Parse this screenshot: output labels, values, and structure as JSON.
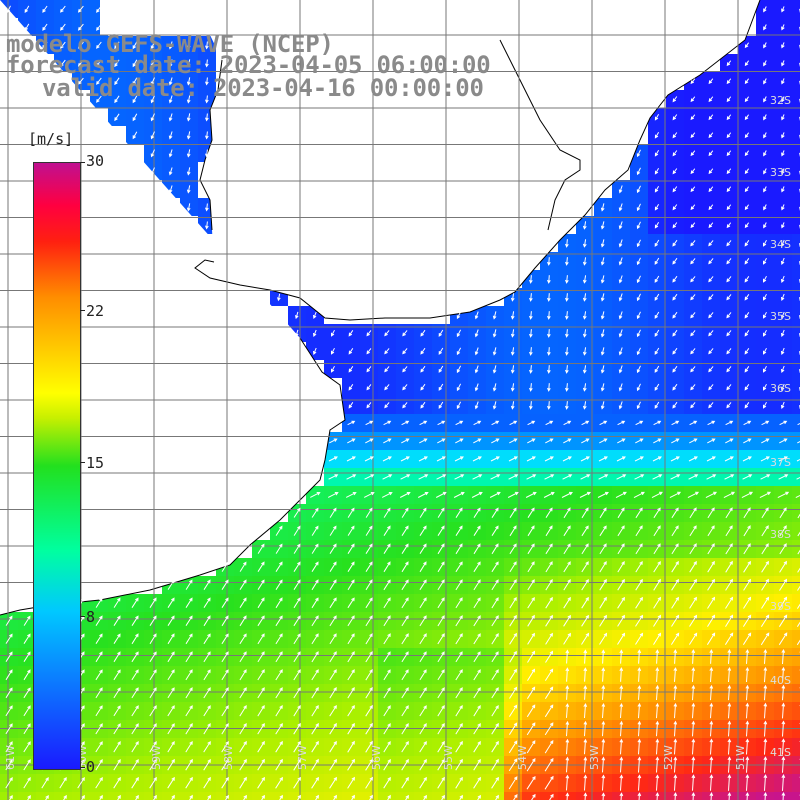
{
  "header": {
    "line1": "modelo GEFS-WAVE (NCEP)",
    "line2": "forecast date: 2023-04-05 06:00:00",
    "line3": "valid date: 2023-04-16 00:00:00"
  },
  "colorbar": {
    "unit": "[m/s]",
    "ticks": [
      "30",
      "22",
      "15",
      "8",
      "0"
    ],
    "colors": [
      "#1a1aff",
      "#00c8ff",
      "#00ffa0",
      "#22e01e",
      "#ffff00",
      "#ff8c00",
      "#ff2010",
      "#c01090"
    ]
  },
  "map": {
    "lat_labels": [
      "32S",
      "33S",
      "34S",
      "35S",
      "36S",
      "37S",
      "38S",
      "39S",
      "40S",
      "41S"
    ],
    "lon_labels": [
      "61W",
      "60W",
      "59W",
      "58W",
      "57W",
      "56W",
      "55W",
      "54W",
      "53W",
      "52W",
      "51W"
    ],
    "land_color": "#ffffff",
    "coast_color": "#000000",
    "grid_color": "#777777",
    "arrow_color": "#ffffff"
  }
}
